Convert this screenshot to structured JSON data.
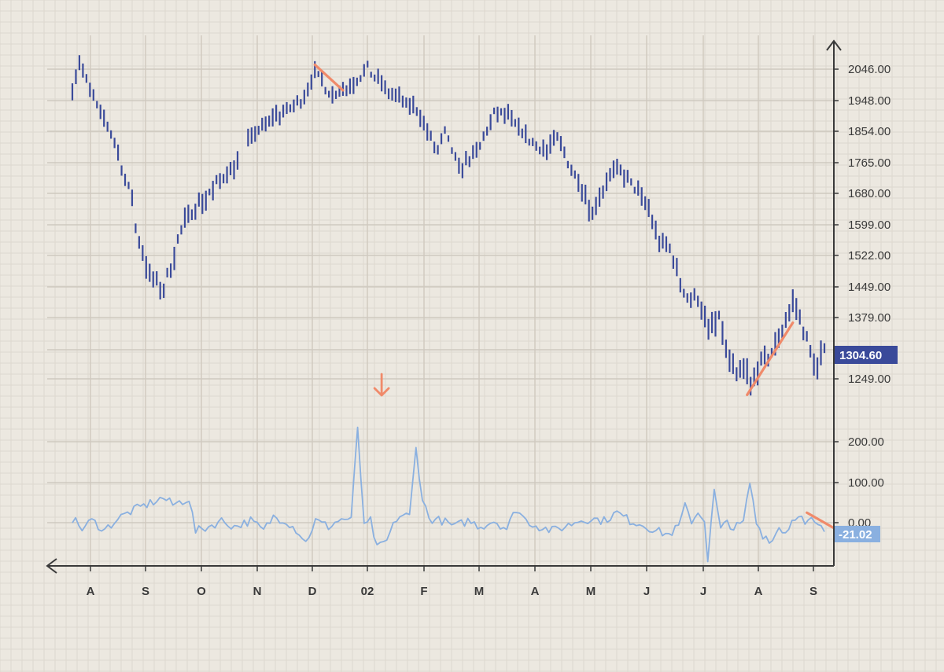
{
  "chart_data": {
    "type": "bar",
    "title": "",
    "xlabel": "",
    "ylabel": "",
    "x_ticks": [
      "A",
      "S",
      "O",
      "N",
      "D",
      "02",
      "F",
      "M",
      "A",
      "M",
      "J",
      "J",
      "A",
      "S"
    ],
    "price_panel": {
      "chart_style": "ohlc-bars",
      "y_ticks": [
        "2046.00",
        "1948.00",
        "1854.00",
        "1765.00",
        "1680.00",
        "1599.00",
        "1522.00",
        "1449.00",
        "1379.00",
        "1249.00"
      ],
      "last_value": "1304.60",
      "series": [
        {
          "name": "",
          "color": "#3a4a9a",
          "anchors": [
            [
              0,
              1990
            ],
            [
              2,
              2065
            ],
            [
              4,
              2010
            ],
            [
              8,
              1900
            ],
            [
              11,
              1850
            ],
            [
              15,
              1720
            ],
            [
              17,
              1665
            ],
            [
              18,
              1590
            ],
            [
              22,
              1470
            ],
            [
              26,
              1440
            ],
            [
              30,
              1560
            ],
            [
              34,
              1640
            ],
            [
              38,
              1670
            ],
            [
              46,
              1760
            ],
            [
              53,
              1860
            ],
            [
              59,
              1905
            ],
            [
              63,
              1930
            ],
            [
              65,
              1948
            ],
            [
              69,
              2030
            ],
            [
              74,
              1968
            ],
            [
              79,
              1990
            ],
            [
              84,
              2050
            ],
            [
              89,
              1980
            ],
            [
              94,
              1940
            ],
            [
              98,
              1918
            ],
            [
              102,
              1830
            ],
            [
              104,
              1795
            ],
            [
              106,
              1850
            ],
            [
              110,
              1750
            ],
            [
              115,
              1790
            ],
            [
              120,
              1905
            ],
            [
              124,
              1900
            ],
            [
              130,
              1830
            ],
            [
              135,
              1795
            ],
            [
              138,
              1835
            ],
            [
              142,
              1750
            ],
            [
              145,
              1695
            ],
            [
              148,
              1630
            ],
            [
              152,
              1710
            ],
            [
              155,
              1745
            ],
            [
              160,
              1695
            ],
            [
              164,
              1640
            ],
            [
              167,
              1555
            ],
            [
              170,
              1540
            ],
            [
              173,
              1460
            ],
            [
              175,
              1425
            ],
            [
              178,
              1425
            ],
            [
              181,
              1350
            ],
            [
              184,
              1375
            ],
            [
              186,
              1310
            ],
            [
              189,
              1252
            ],
            [
              191,
              1272
            ],
            [
              193,
              1232
            ],
            [
              195,
              1268
            ],
            [
              199,
              1305
            ],
            [
              203,
              1375
            ],
            [
              205,
              1405
            ],
            [
              208,
              1360
            ],
            [
              210,
              1305
            ],
            [
              212,
              1275
            ],
            [
              214,
              1305
            ]
          ]
        }
      ],
      "ylim": [
        1190,
        2080
      ]
    },
    "oscillator_panel": {
      "y_ticks": [
        "200.00",
        "100.00",
        "0.00"
      ],
      "last_value": "-21.02",
      "series": [
        {
          "name": "",
          "color": "#8ab0e0",
          "anchors": [
            [
              0,
              10
            ],
            [
              3,
              -15
            ],
            [
              6,
              5
            ],
            [
              10,
              -18
            ],
            [
              14,
              10
            ],
            [
              18,
              28
            ],
            [
              22,
              42
            ],
            [
              28,
              62
            ],
            [
              31,
              45
            ],
            [
              36,
              60
            ],
            [
              38,
              -22
            ],
            [
              42,
              -10
            ],
            [
              46,
              5
            ],
            [
              50,
              -10
            ],
            [
              55,
              5
            ],
            [
              59,
              -20
            ],
            [
              62,
              15
            ],
            [
              66,
              5
            ],
            [
              70,
              -25
            ],
            [
              72,
              -50
            ],
            [
              75,
              5
            ],
            [
              79,
              -10
            ],
            [
              82,
              5
            ],
            [
              84,
              10
            ],
            [
              86,
              5
            ],
            [
              88,
              240
            ],
            [
              90,
              -12
            ],
            [
              92,
              5
            ],
            [
              94,
              -65
            ],
            [
              97,
              -45
            ],
            [
              100,
              10
            ],
            [
              102,
              20
            ],
            [
              104,
              15
            ],
            [
              106,
              185
            ],
            [
              108,
              60
            ],
            [
              110,
              10
            ],
            [
              114,
              5
            ],
            [
              118,
              -10
            ],
            [
              122,
              5
            ],
            [
              126,
              -10
            ],
            [
              130,
              5
            ],
            [
              134,
              -15
            ],
            [
              137,
              35
            ],
            [
              140,
              5
            ],
            [
              144,
              -10
            ],
            [
              148,
              -20
            ],
            [
              152,
              -10
            ],
            [
              156,
              5
            ],
            [
              160,
              10
            ],
            [
              164,
              5
            ],
            [
              168,
              25
            ],
            [
              172,
              5
            ],
            [
              176,
              -5
            ],
            [
              180,
              -20
            ],
            [
              184,
              -30
            ],
            [
              187,
              -10
            ],
            [
              189,
              40
            ],
            [
              191,
              5
            ],
            [
              193,
              25
            ],
            [
              195,
              10
            ],
            [
              196,
              -95
            ],
            [
              198,
              80
            ],
            [
              200,
              -20
            ],
            [
              202,
              5
            ],
            [
              204,
              -15
            ],
            [
              207,
              0
            ],
            [
              209,
              100
            ],
            [
              211,
              0
            ],
            [
              213,
              -30
            ],
            [
              216,
              -45
            ],
            [
              218,
              -10
            ],
            [
              220,
              -25
            ],
            [
              222,
              5
            ],
            [
              224,
              25
            ],
            [
              226,
              -5
            ],
            [
              228,
              5
            ],
            [
              230,
              -10
            ],
            [
              232,
              -20
            ]
          ]
        }
      ],
      "ylim": [
        -95,
        260
      ]
    },
    "annotations": [
      {
        "kind": "down-arrow",
        "panel": "oscillator",
        "at": [
          88,
          300
        ]
      },
      {
        "kind": "trend-line",
        "panel": "price",
        "from": [
          69,
          2060
        ],
        "to": [
          77,
          1980
        ],
        "color": "#f08a6a"
      },
      {
        "kind": "trend-line",
        "panel": "price",
        "from": [
          192,
          1215
        ],
        "to": [
          205,
          1368
        ],
        "color": "#f08a6a"
      },
      {
        "kind": "trend-line",
        "panel": "oscillator",
        "from": [
          209,
          25
        ],
        "to": [
          219,
          -25
        ],
        "color": "#f08a6a"
      }
    ],
    "colors": {
      "background": "#ece8e0",
      "grid_minor": "#ddd8cf",
      "grid_major": "#cfc9bf",
      "axis": "#3a3a3a",
      "price_bars": "#3a4a9a",
      "oscillator": "#8ab0e0",
      "price_badge": "#3a4a9a",
      "osc_badge": "#8ab0e0",
      "annotation": "#f08a6a"
    },
    "grid": true
  }
}
